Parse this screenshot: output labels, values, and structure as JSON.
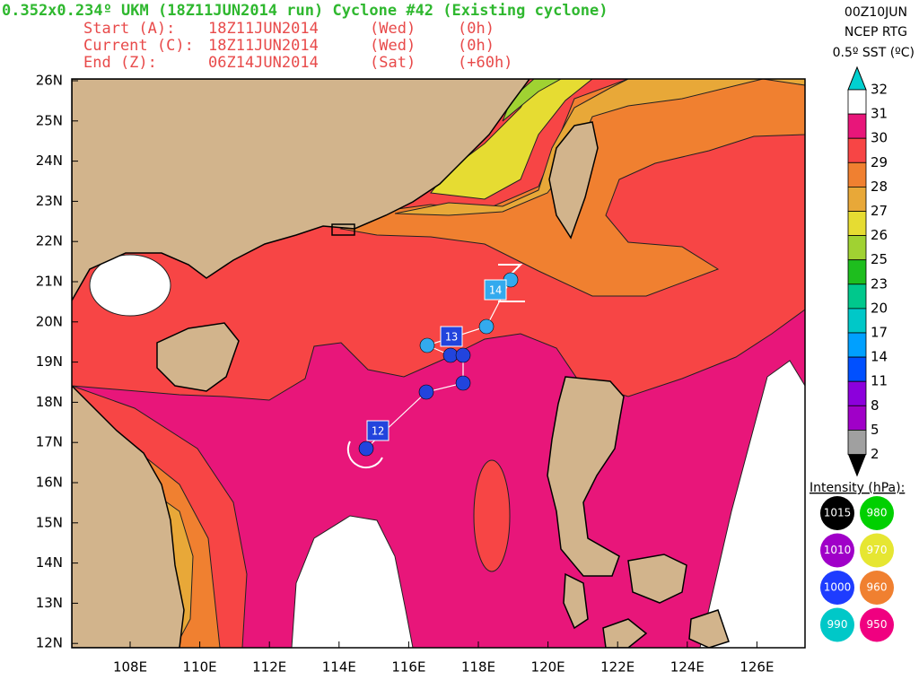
{
  "header": {
    "title": "0.352x0.234º UKM (18Z11JUN2014 run) Cyclone #42 (Existing cyclone)",
    "rows": [
      [
        "Start (A):",
        "18Z11JUN2014",
        "(Wed)",
        "(0h)"
      ],
      [
        "Current (C):",
        "18Z11JUN2014",
        "(Wed)",
        "(0h)"
      ],
      [
        "End (Z):",
        "06Z14JUN2014",
        "(Sat)",
        "(+60h)"
      ]
    ]
  },
  "sst_legend": {
    "lines": [
      "00Z10JUN",
      "NCEP RTG",
      "0.5º SST (ºC)"
    ],
    "labels": [
      "32",
      "31",
      "30",
      "29",
      "28",
      "27",
      "26",
      "25",
      "23",
      "20",
      "17",
      "14",
      "11",
      "8",
      "5",
      "2"
    ]
  },
  "map": {
    "lat_labels": [
      "26N",
      "25N",
      "24N",
      "23N",
      "22N",
      "21N",
      "20N",
      "19N",
      "18N",
      "17N",
      "16N",
      "15N",
      "14N",
      "13N",
      "12N"
    ],
    "lon_labels": [
      "108E",
      "110E",
      "112E",
      "114E",
      "116E",
      "118E",
      "120E",
      "122E",
      "124E",
      "126E"
    ],
    "storm_labels": [
      "12",
      "13",
      "14"
    ]
  },
  "intensity_legend": {
    "title": "Intensity (hPa):",
    "items": [
      "1015",
      "980",
      "1010",
      "970",
      "1000",
      "960",
      "990",
      "950"
    ]
  }
}
